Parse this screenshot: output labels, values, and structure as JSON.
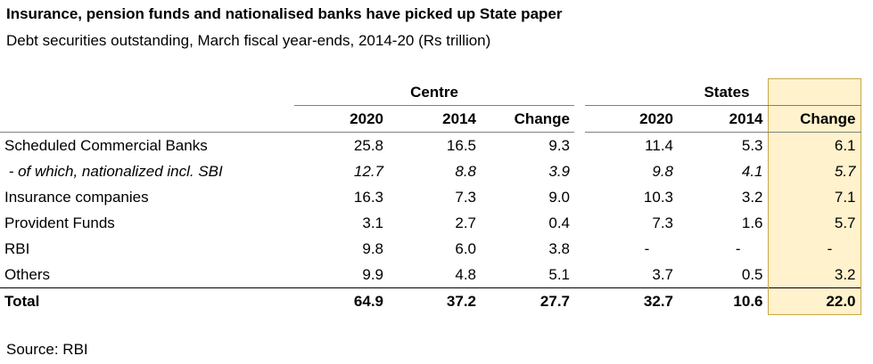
{
  "title": "Insurance, pension funds and nationalised banks have picked up State paper",
  "subtitle": "Debt securities outstanding, March fiscal year-ends, 2014-20 (Rs trillion)",
  "source": "Source: RBI",
  "chart_data": {
    "type": "table",
    "groups": [
      "Centre",
      "States"
    ],
    "columns": [
      "2020",
      "2014",
      "Change",
      "2020",
      "2014",
      "Change"
    ],
    "rows": [
      {
        "label": "Scheduled Commercial Banks",
        "values": [
          "25.8",
          "16.5",
          "9.3",
          "11.4",
          "5.3",
          "6.1"
        ]
      },
      {
        "label": " - of which, nationalized incl. SBI",
        "values": [
          "12.7",
          "8.8",
          "3.9",
          "9.8",
          "4.1",
          "5.7"
        ]
      },
      {
        "label": "Insurance companies",
        "values": [
          "16.3",
          "7.3",
          "9.0",
          "10.3",
          "3.2",
          "7.1"
        ]
      },
      {
        "label": "Provident Funds",
        "values": [
          "3.1",
          "2.7",
          "0.4",
          "7.3",
          "1.6",
          "5.7"
        ]
      },
      {
        "label": "RBI",
        "values": [
          "9.8",
          "6.0",
          "3.8",
          "-",
          "-",
          "-"
        ]
      },
      {
        "label": "Others",
        "values": [
          "9.9",
          "4.8",
          "5.1",
          "3.7",
          "0.5",
          "3.2"
        ]
      },
      {
        "label": "Total",
        "values": [
          "64.9",
          "37.2",
          "27.7",
          "32.7",
          "10.6",
          "22.0"
        ]
      }
    ],
    "highlight_color": "#fff2cc"
  }
}
